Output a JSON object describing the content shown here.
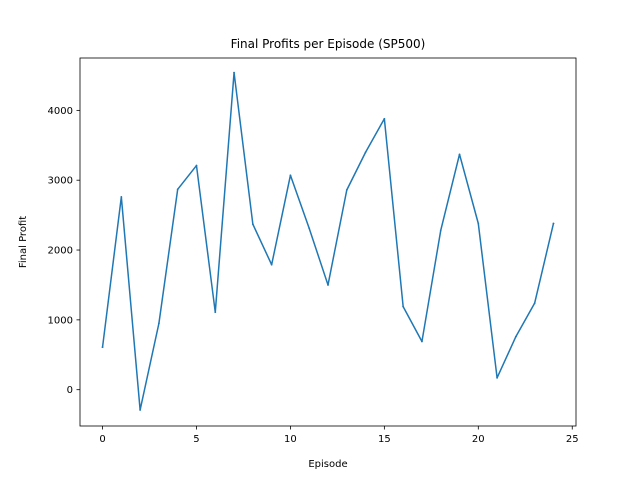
{
  "chart_data": {
    "type": "line",
    "title": "Final Profits per Episode (SP500)",
    "xlabel": "Episode",
    "ylabel": "Final Profit",
    "xlim": [
      -1.2,
      25.2
    ],
    "ylim": [
      -520,
      4750
    ],
    "xticks": [
      0,
      5,
      10,
      15,
      20,
      25
    ],
    "yticks": [
      0,
      1000,
      2000,
      3000,
      4000
    ],
    "grid": false,
    "series": [
      {
        "color": "#1f77b4",
        "x": [
          0,
          1,
          2,
          3,
          4,
          5,
          6,
          7,
          8,
          9,
          10,
          11,
          12,
          13,
          14,
          15,
          16,
          17,
          18,
          19,
          20,
          21,
          22,
          23,
          24
        ],
        "y": [
          610,
          2760,
          -290,
          950,
          2870,
          3210,
          1110,
          4540,
          2370,
          1790,
          3070,
          2310,
          1500,
          2860,
          3400,
          3880,
          1190,
          690,
          2280,
          3370,
          2380,
          170,
          760,
          1240,
          2380
        ]
      }
    ]
  }
}
